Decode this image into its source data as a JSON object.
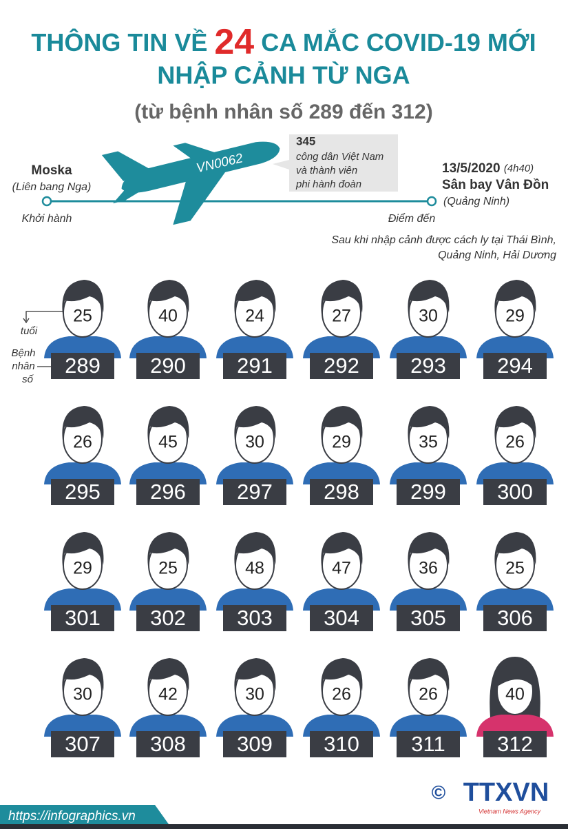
{
  "header": {
    "title_parts": [
      "THÔNG TIN VỀ",
      "24",
      "CA MẮC COVID-19 MỚI"
    ],
    "title_line2": "NHẬP CẢNH TỪ NGA",
    "subtitle": "(từ bệnh nhân số 289 đến 312)"
  },
  "flight": {
    "origin": "Moska",
    "origin_country": "(Liên bang Nga)",
    "departure_label": "Khởi hành",
    "flight_code": "VN0062",
    "passengers": "345",
    "passengers_desc": [
      "công dân Việt Nam",
      "và thành viên",
      "phi hành đoàn"
    ],
    "date": "13/5/2020",
    "time": "(4h40)",
    "destination": "Sân bay Vân Đồn",
    "destination_province": "(Quảng Ninh)",
    "arrival_label": "Điểm đến",
    "quarantine_note": [
      "Sau khi nhập cảnh được cách ly tại Thái Bình,",
      "Quảng Ninh, Hải Dương"
    ]
  },
  "legend": {
    "age_label": "tuổi",
    "patient_label": [
      "Bệnh",
      "nhân",
      "số"
    ]
  },
  "patients": [
    {
      "age": 25,
      "id": 289,
      "figure": "male"
    },
    {
      "age": 40,
      "id": 290,
      "figure": "male"
    },
    {
      "age": 24,
      "id": 291,
      "figure": "male"
    },
    {
      "age": 27,
      "id": 292,
      "figure": "male"
    },
    {
      "age": 30,
      "id": 293,
      "figure": "male"
    },
    {
      "age": 29,
      "id": 294,
      "figure": "male"
    },
    {
      "age": 26,
      "id": 295,
      "figure": "male"
    },
    {
      "age": 45,
      "id": 296,
      "figure": "male"
    },
    {
      "age": 30,
      "id": 297,
      "figure": "male"
    },
    {
      "age": 29,
      "id": 298,
      "figure": "male"
    },
    {
      "age": 35,
      "id": 299,
      "figure": "male"
    },
    {
      "age": 26,
      "id": 300,
      "figure": "male"
    },
    {
      "age": 29,
      "id": 301,
      "figure": "male"
    },
    {
      "age": 25,
      "id": 302,
      "figure": "male"
    },
    {
      "age": 48,
      "id": 303,
      "figure": "male"
    },
    {
      "age": 47,
      "id": 304,
      "figure": "male"
    },
    {
      "age": 36,
      "id": 305,
      "figure": "male"
    },
    {
      "age": 25,
      "id": 306,
      "figure": "male"
    },
    {
      "age": 30,
      "id": 307,
      "figure": "male"
    },
    {
      "age": 42,
      "id": 308,
      "figure": "male"
    },
    {
      "age": 30,
      "id": 309,
      "figure": "male"
    },
    {
      "age": 26,
      "id": 310,
      "figure": "male"
    },
    {
      "age": 26,
      "id": 311,
      "figure": "male"
    },
    {
      "age": 40,
      "id": 312,
      "figure": "female"
    }
  ],
  "footer": {
    "url": "https://infographics.vn",
    "copyright": "©",
    "logo": "TTXVN",
    "agency": "Vietnam News Agency"
  }
}
